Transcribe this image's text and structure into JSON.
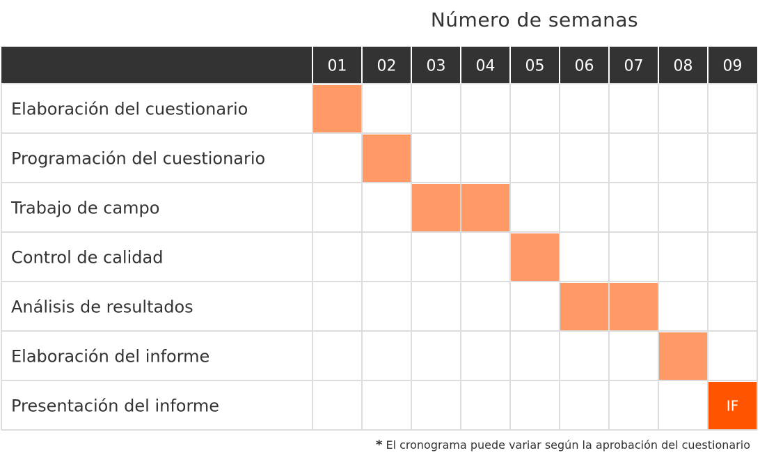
{
  "chart_data": {
    "type": "gantt",
    "title": "Número de semanas",
    "weeks": [
      "01",
      "02",
      "03",
      "04",
      "05",
      "06",
      "07",
      "08",
      "09"
    ],
    "tasks": [
      {
        "label": "Elaboración del cuestionario",
        "weeks": [
          1
        ]
      },
      {
        "label": "Programación del cuestionario",
        "weeks": [
          2
        ]
      },
      {
        "label": "Trabajo de campo",
        "weeks": [
          3,
          4
        ]
      },
      {
        "label": "Control de calidad",
        "weeks": [
          5
        ]
      },
      {
        "label": "Análisis de resultados",
        "weeks": [
          6,
          7
        ]
      },
      {
        "label": "Elaboración del informe",
        "weeks": [
          8
        ]
      },
      {
        "label": "Presentación del informe",
        "weeks": [
          9
        ],
        "marker": "IF"
      }
    ],
    "colors": {
      "header": "#333333",
      "bar": "#ff9966",
      "marker": "#ff5500",
      "grid": "#dddddd"
    }
  },
  "footnote": {
    "symbol": "*",
    "text": "El cronograma puede variar según la aprobación del cuestionario"
  }
}
